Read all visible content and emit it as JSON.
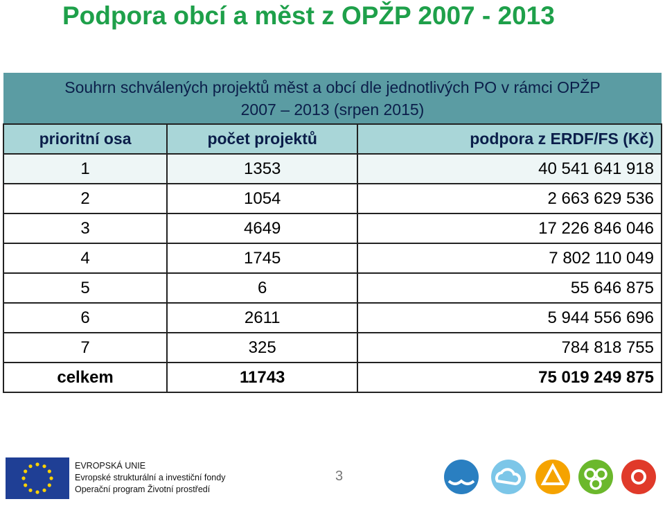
{
  "title": "Podpora obcí a měst z OPŽP 2007 - 2013",
  "table": {
    "caption": [
      "Souhrn schválených projektů měst a obcí dle jednotlivých PO v rámci OPŽP",
      "2007 – 2013 (srpen 2015)"
    ],
    "header": [
      "prioritní osa",
      "počet projektů",
      "podpora z ERDF/FS (Kč)"
    ],
    "rows": [
      [
        "1",
        "1353",
        "40 541 641 918"
      ],
      [
        "2",
        "1054",
        "2 663 629 536"
      ],
      [
        "3",
        "4649",
        "17 226 846 046"
      ],
      [
        "4",
        "1745",
        "7 802 110 049"
      ],
      [
        "5",
        "6",
        "55 646 875"
      ],
      [
        "6",
        "2611",
        "5 944 556 696"
      ],
      [
        "7",
        "325",
        "784 818 755"
      ]
    ],
    "total": [
      "celkem",
      "11743",
      "75 019 249 875"
    ]
  },
  "footer": {
    "eu": [
      "EVROPSKÁ UNIE",
      "Evropské strukturální a investiční fondy",
      "Operační program Životní prostředí"
    ],
    "page_number": "3"
  }
}
